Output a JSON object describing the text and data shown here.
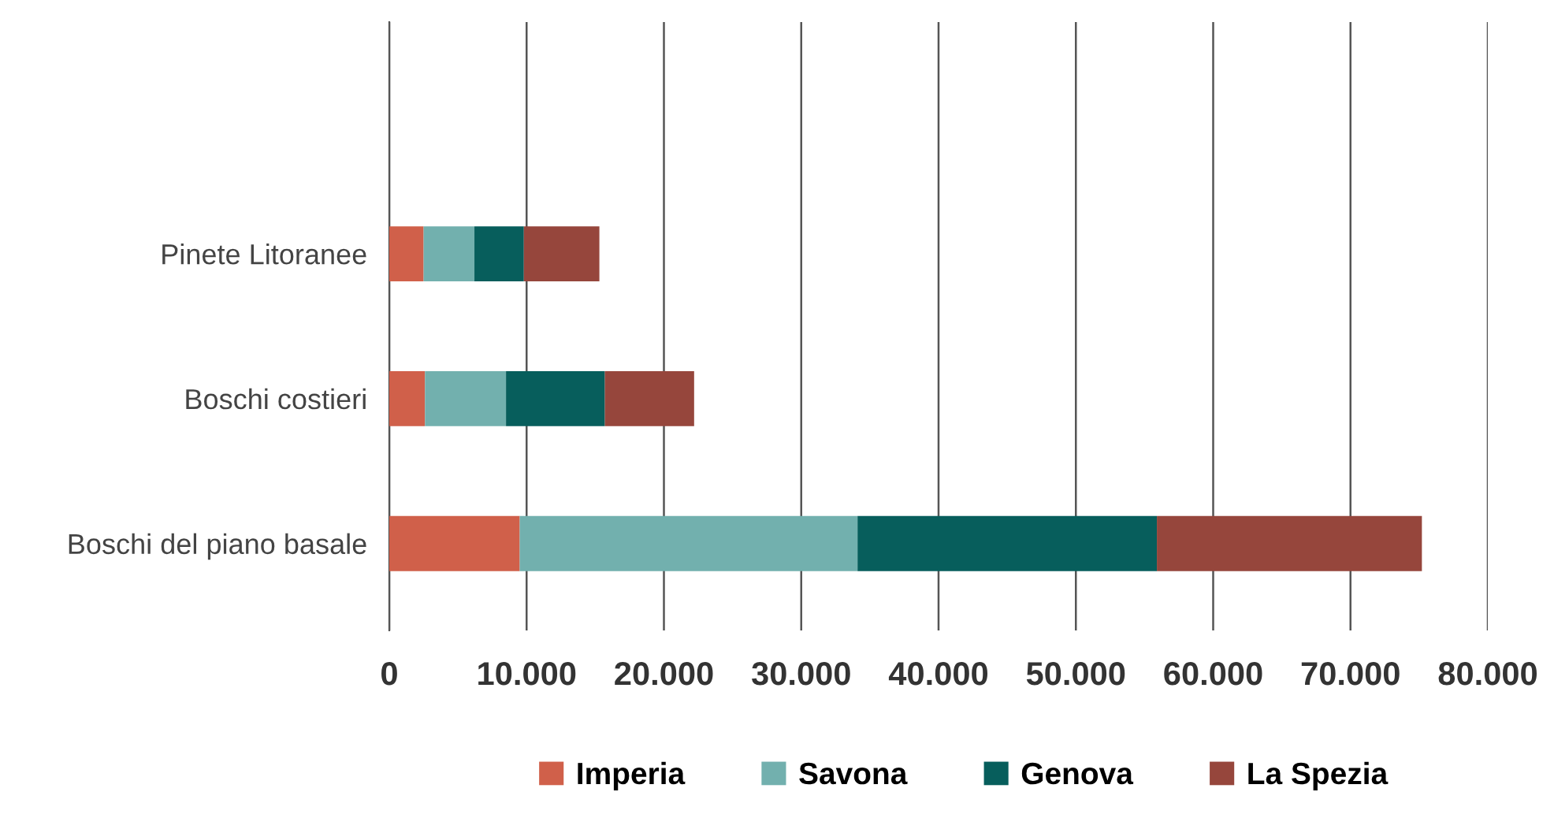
{
  "chart_data": {
    "type": "bar",
    "orientation": "horizontal",
    "stacked": true,
    "categories": [
      "Pinete Litoranee",
      "Boschi costieri",
      "Boschi del piano basale"
    ],
    "series": [
      {
        "name": "Imperia",
        "color": "#d0604a",
        "values": [
          2500,
          2600,
          9500
        ]
      },
      {
        "name": "Savona",
        "color": "#72b0ae",
        "values": [
          3700,
          5900,
          24600
        ]
      },
      {
        "name": "Genova",
        "color": "#075e5c",
        "values": [
          3600,
          7200,
          21800
        ]
      },
      {
        "name": "La Spezia",
        "color": "#96463c",
        "values": [
          5500,
          6500,
          19300
        ]
      }
    ],
    "xlim": [
      0,
      80000
    ],
    "xticks": [
      {
        "value": 0,
        "label": "0"
      },
      {
        "value": 10000,
        "label": "10.000"
      },
      {
        "value": 20000,
        "label": "20.000"
      },
      {
        "value": 30000,
        "label": "30.000"
      },
      {
        "value": 40000,
        "label": "40.000"
      },
      {
        "value": 50000,
        "label": "50.000"
      },
      {
        "value": 60000,
        "label": "60.000"
      },
      {
        "value": 70000,
        "label": "70.000"
      },
      {
        "value": 80000,
        "label": "80.000"
      }
    ],
    "grid": "x",
    "legend": "bottom"
  }
}
